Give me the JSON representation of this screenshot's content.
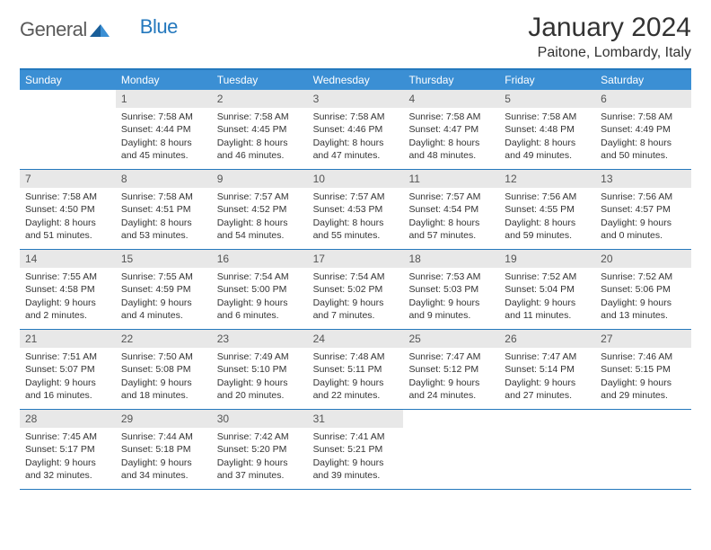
{
  "brand": {
    "part1": "General",
    "part2": "Blue"
  },
  "title": "January 2024",
  "location": "Paitone, Lombardy, Italy",
  "colors": {
    "header_bg": "#3b8fd4",
    "rule": "#2478bd",
    "daynum_bg": "#e8e8e8",
    "text": "#333333",
    "logo_gray": "#5a5a5a",
    "logo_blue": "#2478bd",
    "page_bg": "#ffffff"
  },
  "font": {
    "body_pt": 10.5,
    "daynum_pt": 12,
    "header_pt": 12,
    "title_pt": 30,
    "location_pt": 16
  },
  "day_headers": [
    "Sunday",
    "Monday",
    "Tuesday",
    "Wednesday",
    "Thursday",
    "Friday",
    "Saturday"
  ],
  "weeks": [
    [
      null,
      {
        "n": "1",
        "sunrise": "7:58 AM",
        "sunset": "4:44 PM",
        "day_h": "8",
        "day_m": "45"
      },
      {
        "n": "2",
        "sunrise": "7:58 AM",
        "sunset": "4:45 PM",
        "day_h": "8",
        "day_m": "46"
      },
      {
        "n": "3",
        "sunrise": "7:58 AM",
        "sunset": "4:46 PM",
        "day_h": "8",
        "day_m": "47"
      },
      {
        "n": "4",
        "sunrise": "7:58 AM",
        "sunset": "4:47 PM",
        "day_h": "8",
        "day_m": "48"
      },
      {
        "n": "5",
        "sunrise": "7:58 AM",
        "sunset": "4:48 PM",
        "day_h": "8",
        "day_m": "49"
      },
      {
        "n": "6",
        "sunrise": "7:58 AM",
        "sunset": "4:49 PM",
        "day_h": "8",
        "day_m": "50"
      }
    ],
    [
      {
        "n": "7",
        "sunrise": "7:58 AM",
        "sunset": "4:50 PM",
        "day_h": "8",
        "day_m": "51"
      },
      {
        "n": "8",
        "sunrise": "7:58 AM",
        "sunset": "4:51 PM",
        "day_h": "8",
        "day_m": "53"
      },
      {
        "n": "9",
        "sunrise": "7:57 AM",
        "sunset": "4:52 PM",
        "day_h": "8",
        "day_m": "54"
      },
      {
        "n": "10",
        "sunrise": "7:57 AM",
        "sunset": "4:53 PM",
        "day_h": "8",
        "day_m": "55"
      },
      {
        "n": "11",
        "sunrise": "7:57 AM",
        "sunset": "4:54 PM",
        "day_h": "8",
        "day_m": "57"
      },
      {
        "n": "12",
        "sunrise": "7:56 AM",
        "sunset": "4:55 PM",
        "day_h": "8",
        "day_m": "59"
      },
      {
        "n": "13",
        "sunrise": "7:56 AM",
        "sunset": "4:57 PM",
        "day_h": "9",
        "day_m": "0"
      }
    ],
    [
      {
        "n": "14",
        "sunrise": "7:55 AM",
        "sunset": "4:58 PM",
        "day_h": "9",
        "day_m": "2"
      },
      {
        "n": "15",
        "sunrise": "7:55 AM",
        "sunset": "4:59 PM",
        "day_h": "9",
        "day_m": "4"
      },
      {
        "n": "16",
        "sunrise": "7:54 AM",
        "sunset": "5:00 PM",
        "day_h": "9",
        "day_m": "6"
      },
      {
        "n": "17",
        "sunrise": "7:54 AM",
        "sunset": "5:02 PM",
        "day_h": "9",
        "day_m": "7"
      },
      {
        "n": "18",
        "sunrise": "7:53 AM",
        "sunset": "5:03 PM",
        "day_h": "9",
        "day_m": "9"
      },
      {
        "n": "19",
        "sunrise": "7:52 AM",
        "sunset": "5:04 PM",
        "day_h": "9",
        "day_m": "11"
      },
      {
        "n": "20",
        "sunrise": "7:52 AM",
        "sunset": "5:06 PM",
        "day_h": "9",
        "day_m": "13"
      }
    ],
    [
      {
        "n": "21",
        "sunrise": "7:51 AM",
        "sunset": "5:07 PM",
        "day_h": "9",
        "day_m": "16"
      },
      {
        "n": "22",
        "sunrise": "7:50 AM",
        "sunset": "5:08 PM",
        "day_h": "9",
        "day_m": "18"
      },
      {
        "n": "23",
        "sunrise": "7:49 AM",
        "sunset": "5:10 PM",
        "day_h": "9",
        "day_m": "20"
      },
      {
        "n": "24",
        "sunrise": "7:48 AM",
        "sunset": "5:11 PM",
        "day_h": "9",
        "day_m": "22"
      },
      {
        "n": "25",
        "sunrise": "7:47 AM",
        "sunset": "5:12 PM",
        "day_h": "9",
        "day_m": "24"
      },
      {
        "n": "26",
        "sunrise": "7:47 AM",
        "sunset": "5:14 PM",
        "day_h": "9",
        "day_m": "27"
      },
      {
        "n": "27",
        "sunrise": "7:46 AM",
        "sunset": "5:15 PM",
        "day_h": "9",
        "day_m": "29"
      }
    ],
    [
      {
        "n": "28",
        "sunrise": "7:45 AM",
        "sunset": "5:17 PM",
        "day_h": "9",
        "day_m": "32"
      },
      {
        "n": "29",
        "sunrise": "7:44 AM",
        "sunset": "5:18 PM",
        "day_h": "9",
        "day_m": "34"
      },
      {
        "n": "30",
        "sunrise": "7:42 AM",
        "sunset": "5:20 PM",
        "day_h": "9",
        "day_m": "37"
      },
      {
        "n": "31",
        "sunrise": "7:41 AM",
        "sunset": "5:21 PM",
        "day_h": "9",
        "day_m": "39"
      },
      null,
      null,
      null
    ]
  ],
  "labels": {
    "sunrise": "Sunrise:",
    "sunset": "Sunset:",
    "daylight": "Daylight:",
    "hours": "hours",
    "and": "and",
    "minutes": "minutes."
  }
}
